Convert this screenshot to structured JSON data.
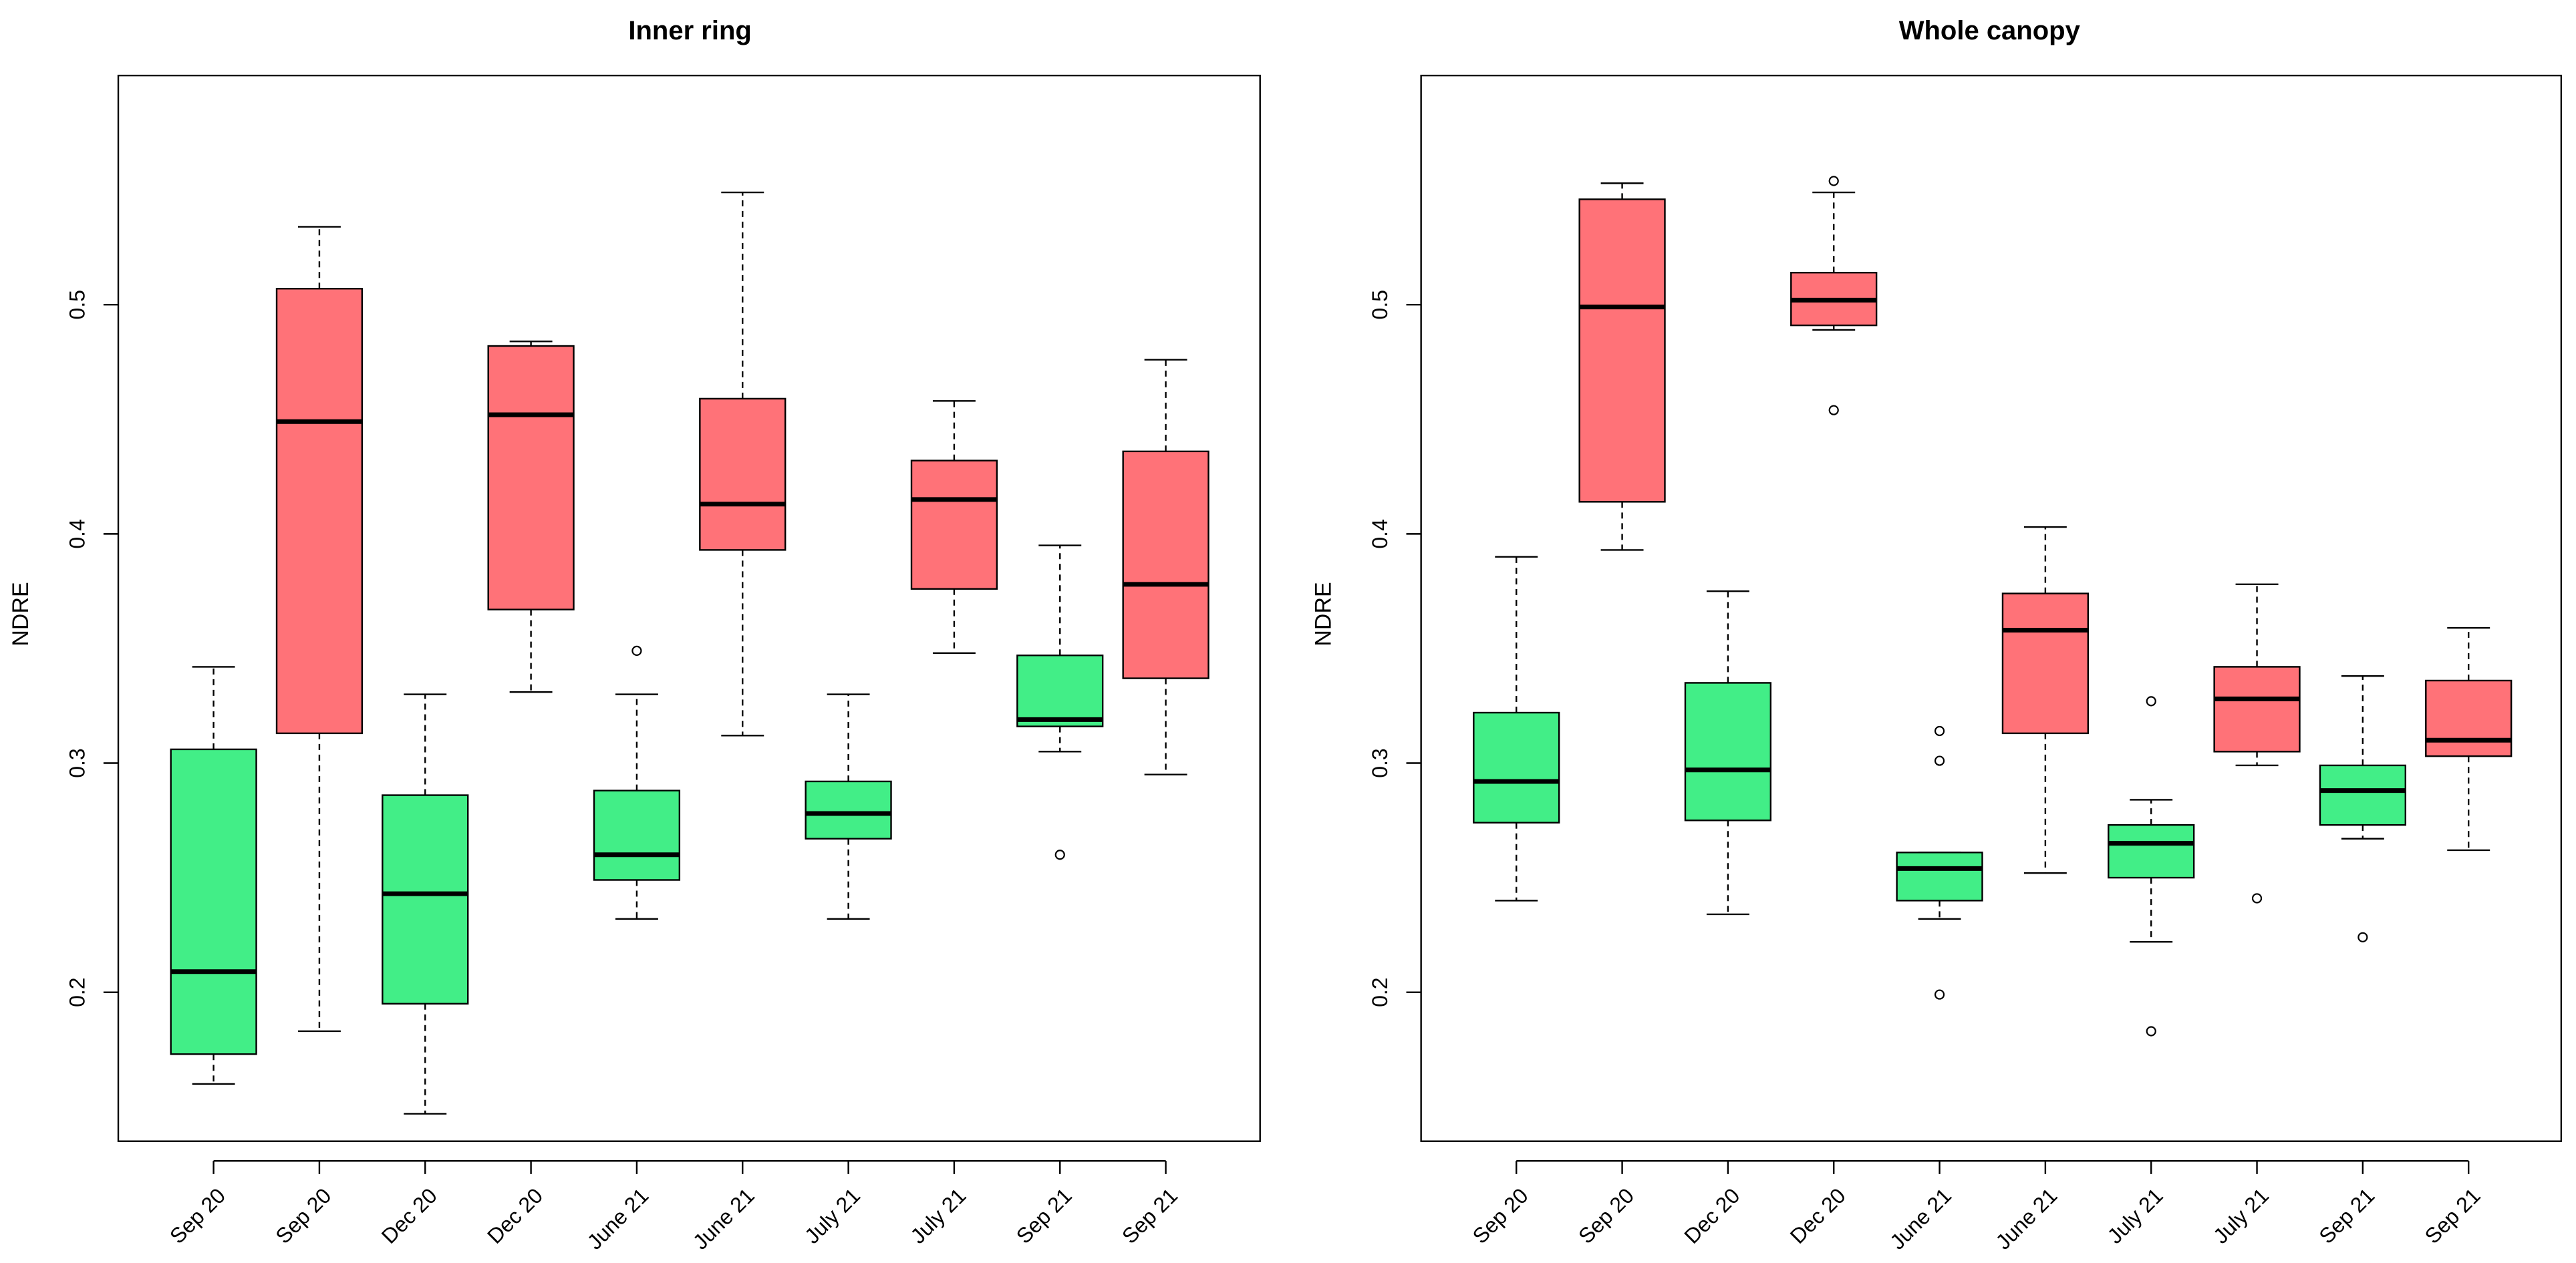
{
  "chart_data": [
    {
      "type": "boxplot",
      "title": "Inner ring",
      "ylabel": "NDRE",
      "xlabel": "",
      "ylim": [
        0.135,
        0.6
      ],
      "yticks": [
        0.2,
        0.3,
        0.4,
        0.5
      ],
      "ytick_labels": [
        "0.2",
        "0.3",
        "0.4",
        "0.5"
      ],
      "categories": [
        "Sep 20",
        "Sep 20",
        "Dec 20",
        "Dec 20",
        "June 21",
        "June 21",
        "July 21",
        "July 21",
        "Sep 21",
        "Sep 21"
      ],
      "colors": [
        "#42EE87",
        "#FF7278",
        "#42EE87",
        "#FF7278",
        "#42EE87",
        "#FF7278",
        "#42EE87",
        "#FF7278",
        "#42EE87",
        "#FF7278"
      ],
      "grid": false,
      "boxes": [
        {
          "category": "Sep 20",
          "color": "#42EE87",
          "whisker_low": 0.16,
          "q1": 0.173,
          "median": 0.209,
          "q3": 0.306,
          "whisker_high": 0.342,
          "outliers": []
        },
        {
          "category": "Sep 20",
          "color": "#FF7278",
          "whisker_low": 0.183,
          "q1": 0.313,
          "median": 0.449,
          "q3": 0.507,
          "whisker_high": 0.534,
          "outliers": []
        },
        {
          "category": "Dec 20",
          "color": "#42EE87",
          "whisker_low": 0.147,
          "q1": 0.195,
          "median": 0.243,
          "q3": 0.286,
          "whisker_high": 0.33,
          "outliers": []
        },
        {
          "category": "Dec 20",
          "color": "#FF7278",
          "whisker_low": 0.331,
          "q1": 0.367,
          "median": 0.452,
          "q3": 0.482,
          "whisker_high": 0.484,
          "outliers": []
        },
        {
          "category": "June 21",
          "color": "#42EE87",
          "whisker_low": 0.232,
          "q1": 0.249,
          "median": 0.26,
          "q3": 0.288,
          "whisker_high": 0.33,
          "outliers": [
            0.349
          ]
        },
        {
          "category": "June 21",
          "color": "#FF7278",
          "whisker_low": 0.312,
          "q1": 0.393,
          "median": 0.413,
          "q3": 0.459,
          "whisker_high": 0.549,
          "outliers": []
        },
        {
          "category": "July 21",
          "color": "#42EE87",
          "whisker_low": 0.232,
          "q1": 0.267,
          "median": 0.278,
          "q3": 0.292,
          "whisker_high": 0.33,
          "outliers": []
        },
        {
          "category": "July 21",
          "color": "#FF7278",
          "whisker_low": 0.348,
          "q1": 0.376,
          "median": 0.415,
          "q3": 0.432,
          "whisker_high": 0.458,
          "outliers": []
        },
        {
          "category": "Sep 21",
          "color": "#42EE87",
          "whisker_low": 0.305,
          "q1": 0.316,
          "median": 0.319,
          "q3": 0.347,
          "whisker_high": 0.395,
          "outliers": [
            0.26
          ]
        },
        {
          "category": "Sep 21",
          "color": "#FF7278",
          "whisker_low": 0.295,
          "q1": 0.337,
          "median": 0.378,
          "q3": 0.436,
          "whisker_high": 0.476,
          "outliers": []
        }
      ]
    },
    {
      "type": "boxplot",
      "title": "Whole canopy",
      "ylabel": "NDRE",
      "xlabel": "",
      "ylim": [
        0.135,
        0.6
      ],
      "yticks": [
        0.2,
        0.3,
        0.4,
        0.5
      ],
      "ytick_labels": [
        "0.2",
        "0.3",
        "0.4",
        "0.5"
      ],
      "categories": [
        "Sep 20",
        "Sep 20",
        "Dec 20",
        "Dec 20",
        "June 21",
        "June 21",
        "July 21",
        "July 21",
        "Sep 21",
        "Sep 21"
      ],
      "colors": [
        "#42EE87",
        "#FF7278",
        "#42EE87",
        "#FF7278",
        "#42EE87",
        "#FF7278",
        "#42EE87",
        "#FF7278",
        "#42EE87",
        "#FF7278"
      ],
      "grid": false,
      "boxes": [
        {
          "category": "Sep 20",
          "color": "#42EE87",
          "whisker_low": 0.24,
          "q1": 0.274,
          "median": 0.292,
          "q3": 0.322,
          "whisker_high": 0.39,
          "outliers": []
        },
        {
          "category": "Sep 20",
          "color": "#FF7278",
          "whisker_low": 0.393,
          "q1": 0.414,
          "median": 0.499,
          "q3": 0.546,
          "whisker_high": 0.553,
          "outliers": []
        },
        {
          "category": "Dec 20",
          "color": "#42EE87",
          "whisker_low": 0.234,
          "q1": 0.275,
          "median": 0.297,
          "q3": 0.335,
          "whisker_high": 0.375,
          "outliers": []
        },
        {
          "category": "Dec 20",
          "color": "#FF7278",
          "whisker_low": 0.489,
          "q1": 0.491,
          "median": 0.502,
          "q3": 0.514,
          "whisker_high": 0.549,
          "outliers": [
            0.554,
            0.454
          ]
        },
        {
          "category": "June 21",
          "color": "#42EE87",
          "whisker_low": 0.232,
          "q1": 0.24,
          "median": 0.254,
          "q3": 0.261,
          "whisker_high": 0.261,
          "outliers": [
            0.314,
            0.301,
            0.199
          ]
        },
        {
          "category": "June 21",
          "color": "#FF7278",
          "whisker_low": 0.252,
          "q1": 0.313,
          "median": 0.358,
          "q3": 0.374,
          "whisker_high": 0.403,
          "outliers": []
        },
        {
          "category": "July 21",
          "color": "#42EE87",
          "whisker_low": 0.222,
          "q1": 0.25,
          "median": 0.265,
          "q3": 0.273,
          "whisker_high": 0.284,
          "outliers": [
            0.327,
            0.183
          ]
        },
        {
          "category": "July 21",
          "color": "#FF7278",
          "whisker_low": 0.299,
          "q1": 0.305,
          "median": 0.328,
          "q3": 0.342,
          "whisker_high": 0.378,
          "outliers": [
            0.241
          ]
        },
        {
          "category": "Sep 21",
          "color": "#42EE87",
          "whisker_low": 0.267,
          "q1": 0.273,
          "median": 0.288,
          "q3": 0.299,
          "whisker_high": 0.338,
          "outliers": [
            0.224
          ]
        },
        {
          "category": "Sep 21",
          "color": "#FF7278",
          "whisker_low": 0.262,
          "q1": 0.303,
          "median": 0.31,
          "q3": 0.336,
          "whisker_high": 0.359,
          "outliers": []
        }
      ]
    }
  ]
}
